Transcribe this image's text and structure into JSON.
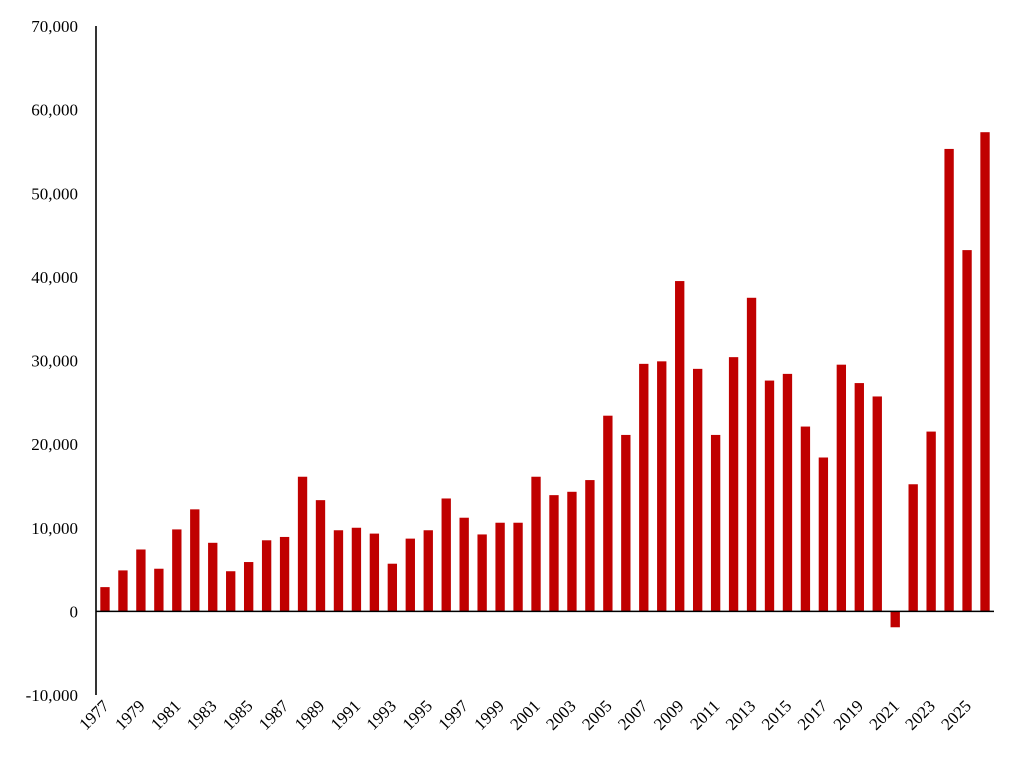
{
  "chart_data": {
    "type": "bar",
    "title": "",
    "xlabel": "",
    "ylabel": "",
    "ylim": [
      -10000,
      70000
    ],
    "yticks": [
      -10000,
      0,
      10000,
      20000,
      30000,
      40000,
      50000,
      60000,
      70000
    ],
    "ytick_labels": [
      "-10,000",
      "0",
      "10,000",
      "20,000",
      "30,000",
      "40,000",
      "50,000",
      "60,000",
      "70,000"
    ],
    "grid": false,
    "legend": "none",
    "bar_color": "#c00000",
    "categories": [
      "1977",
      "1978",
      "1979",
      "1980",
      "1981",
      "1982",
      "1983",
      "1984",
      "1985",
      "1986",
      "1987",
      "1988",
      "1989",
      "1990",
      "1991",
      "1992",
      "1993",
      "1994",
      "1995",
      "1996",
      "1997",
      "1998",
      "1999",
      "2000",
      "2001",
      "2002",
      "2003",
      "2004",
      "2005",
      "2006",
      "2007",
      "2008",
      "2009",
      "2010",
      "2011",
      "2012",
      "2013",
      "2014",
      "2015",
      "2016",
      "2017",
      "2018",
      "2019",
      "2020",
      "2021",
      "2022",
      "2023",
      "2024",
      "2025",
      "2026"
    ],
    "xtick_labels": [
      "1977",
      "1979",
      "1981",
      "1983",
      "1985",
      "1987",
      "1989",
      "1991",
      "1993",
      "1995",
      "1997",
      "1999",
      "2001",
      "2003",
      "2005",
      "2007",
      "2009",
      "2011",
      "2013",
      "2015",
      "2017",
      "2019",
      "2021",
      "2023",
      "2025"
    ],
    "values": [
      2900,
      4900,
      7400,
      5100,
      9800,
      12200,
      8200,
      4800,
      5900,
      8500,
      8900,
      16100,
      13300,
      9700,
      10000,
      9300,
      5700,
      8700,
      9700,
      13500,
      11200,
      9200,
      10600,
      10600,
      16100,
      13900,
      14300,
      15700,
      23400,
      21100,
      29600,
      29900,
      39500,
      29000,
      21100,
      30400,
      37500,
      27600,
      28400,
      22100,
      18400,
      29500,
      27300,
      25700,
      -1900,
      15200,
      21500,
      55300,
      43200,
      57300
    ]
  }
}
